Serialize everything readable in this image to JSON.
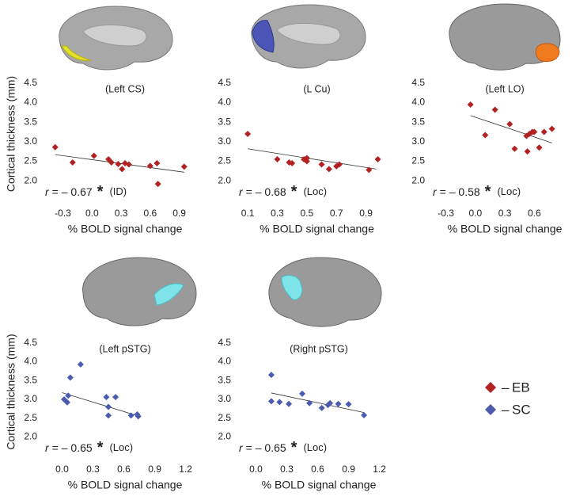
{
  "chart_data": [
    {
      "type": "scatter",
      "title": "(Left CS)",
      "ylabel": "Cortical  thickness  (mm)",
      "xlabel": "% BOLD signal change",
      "xlim": [
        -0.5,
        1.05
      ],
      "ylim": [
        1.8,
        4.6
      ],
      "xticks": [
        -0.3,
        {
          "value": 0,
          "label": "0.0"
        },
        0.3,
        0.6,
        0.9
      ],
      "yticks": [
        {
          "value": 2,
          "label": "2.0"
        },
        2.5,
        {
          "value": 3,
          "label": "3.0"
        },
        3.5,
        {
          "value": 4,
          "label": "4.0"
        },
        4.5
      ],
      "series": [
        {
          "name": "EB",
          "color": "#b22222",
          "x": [
            -0.38,
            -0.2,
            0.02,
            0.17,
            0.2,
            0.27,
            0.31,
            0.34,
            0.38,
            0.6,
            0.67,
            0.68,
            0.95
          ],
          "values": [
            2.86,
            2.47,
            2.64,
            2.55,
            2.47,
            2.43,
            2.3,
            2.45,
            2.42,
            2.38,
            2.45,
            1.92,
            2.36
          ]
        }
      ],
      "fit_line": {
        "x": [
          -0.38,
          0.95
        ],
        "y": [
          2.67,
          2.22
        ]
      },
      "annotation": {
        "r": "r",
        "text": "= – 0.67",
        "star": "*",
        "note": "(ID)"
      }
    },
    {
      "type": "scatter",
      "title": "(L Cu)",
      "xlabel": "% BOLD signal change",
      "xlim": [
        0.03,
        1.02
      ],
      "ylim": [
        1.8,
        4.6
      ],
      "xticks": [
        0.1,
        0.3,
        0.5,
        0.7,
        0.9
      ],
      "yticks": [
        {
          "value": 2,
          "label": "2.0"
        },
        2.5,
        {
          "value": 3,
          "label": "3.0"
        },
        3.5,
        {
          "value": 4,
          "label": "4.0"
        },
        4.5
      ],
      "series": [
        {
          "name": "EB",
          "color": "#b22222",
          "x": [
            0.1,
            0.3,
            0.38,
            0.4,
            0.48,
            0.5,
            0.5,
            0.6,
            0.65,
            0.7,
            0.72,
            0.92,
            0.98
          ],
          "values": [
            3.2,
            2.55,
            2.47,
            2.45,
            2.55,
            2.58,
            2.5,
            2.42,
            2.3,
            2.37,
            2.42,
            2.28,
            2.55
          ]
        }
      ],
      "fit_line": {
        "x": [
          0.1,
          0.97
        ],
        "y": [
          2.82,
          2.3
        ]
      },
      "annotation": {
        "r": "r",
        "text": "= – 0.68",
        "star": "*",
        "note": "(Loc)"
      }
    },
    {
      "type": "scatter",
      "title": "(Left LO)",
      "xlabel": "% BOLD signal change",
      "xlim": [
        -0.45,
        0.92
      ],
      "ylim": [
        1.8,
        4.6
      ],
      "xticks": [
        -0.3,
        {
          "value": 0,
          "label": "0.0"
        },
        0.3,
        0.6
      ],
      "yticks": [
        {
          "value": 2,
          "label": "2.0"
        },
        2.5,
        {
          "value": 3,
          "label": "3.0"
        },
        3.5,
        {
          "value": 4,
          "label": "4.0"
        },
        4.5
      ],
      "series": [
        {
          "name": "EB",
          "color": "#b22222",
          "x": [
            -0.05,
            0.1,
            0.2,
            0.35,
            0.4,
            0.52,
            0.53,
            0.55,
            0.58,
            0.6,
            0.65,
            0.7,
            0.78
          ],
          "values": [
            3.95,
            3.17,
            3.82,
            3.45,
            2.82,
            3.15,
            2.75,
            3.2,
            3.25,
            3.25,
            2.85,
            3.25,
            3.33
          ]
        }
      ],
      "fit_line": {
        "x": [
          -0.05,
          0.78
        ],
        "y": [
          3.67,
          2.97
        ]
      },
      "annotation": {
        "r": "r",
        "text": "= – 0.58",
        "star": "*",
        "note": "(Loc)"
      }
    },
    {
      "type": "scatter",
      "title": "(Left pSTG)",
      "ylabel": "Cortical  thickness  (mm)",
      "xlabel": "% BOLD signal change",
      "xlim": [
        -0.18,
        1.28
      ],
      "ylim": [
        1.8,
        4.6
      ],
      "xticks": [
        {
          "value": 0,
          "label": "0.0"
        },
        0.3,
        0.6,
        0.9,
        1.2
      ],
      "yticks": [
        {
          "value": 2,
          "label": "2.0"
        },
        2.5,
        {
          "value": 3,
          "label": "3.0"
        },
        3.5,
        {
          "value": 4,
          "label": "4.0"
        },
        4.5
      ],
      "series": [
        {
          "name": "SC",
          "color": "#4a5bb0",
          "x": [
            0.02,
            0.05,
            0.06,
            0.08,
            0.18,
            0.43,
            0.45,
            0.45,
            0.52,
            0.67,
            0.73,
            0.74
          ],
          "values": [
            3.0,
            2.92,
            3.1,
            3.58,
            3.93,
            3.06,
            2.8,
            2.57,
            3.06,
            2.57,
            2.6,
            2.55
          ]
        }
      ],
      "fit_line": {
        "x": [
          0.0,
          0.75
        ],
        "y": [
          3.18,
          2.55
        ]
      },
      "annotation": {
        "r": "r",
        "text": "= – 0.65",
        "star": "*",
        "note": "(Loc)"
      }
    },
    {
      "type": "scatter",
      "title": "(Right pSTG)",
      "xlabel": "% BOLD signal change",
      "xlim": [
        -0.18,
        1.28
      ],
      "ylim": [
        1.8,
        4.6
      ],
      "xticks": [
        {
          "value": 0,
          "label": "0.0"
        },
        0.3,
        0.6,
        0.9,
        1.2
      ],
      "yticks": [
        {
          "value": 2,
          "label": "2.0"
        },
        2.5,
        {
          "value": 3,
          "label": "3.0"
        },
        3.5,
        {
          "value": 4,
          "label": "4.0"
        },
        4.5
      ],
      "series": [
        {
          "name": "SC",
          "color": "#4a5bb0",
          "x": [
            0.15,
            0.15,
            0.23,
            0.32,
            0.45,
            0.52,
            0.64,
            0.7,
            0.72,
            0.8,
            0.9,
            1.05
          ],
          "values": [
            3.65,
            2.95,
            2.93,
            2.88,
            3.15,
            2.9,
            2.77,
            2.85,
            2.9,
            2.88,
            2.87,
            2.58
          ]
        }
      ],
      "fit_line": {
        "x": [
          0.15,
          1.05
        ],
        "y": [
          3.17,
          2.65
        ]
      },
      "annotation": {
        "r": "r",
        "text": "= – 0.65",
        "star": "*",
        "note": "(Loc)"
      }
    }
  ]
}
